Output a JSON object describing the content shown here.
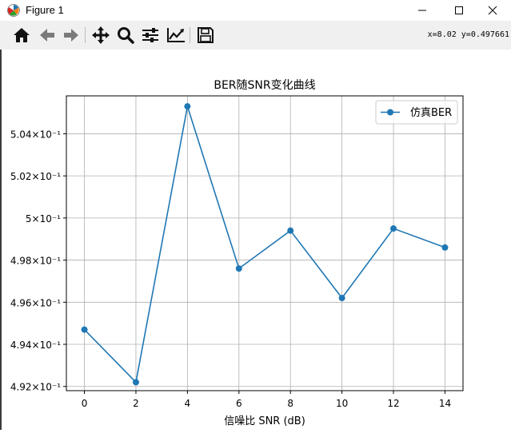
{
  "window": {
    "title": "Figure 1",
    "minimize_label": "Minimize",
    "maximize_label": "Maximize",
    "close_label": "Close"
  },
  "toolbar": {
    "items": [
      "home-icon",
      "back-icon",
      "forward-icon",
      "pan-icon",
      "zoom-icon",
      "subplots-icon",
      "edit-curves-icon",
      "save-icon"
    ],
    "coords": "x=8.02 y=0.497661"
  },
  "chart_data": {
    "type": "line",
    "title": "BER随SNR变化曲线",
    "xlabel": "信噪比 SNR (dB)",
    "ylabel": "",
    "x": [
      0,
      2,
      4,
      6,
      8,
      10,
      12,
      14
    ],
    "series": [
      {
        "name": "仿真BER",
        "values": [
          0.4947,
          0.4922,
          0.5053,
          0.4976,
          0.4994,
          0.4962,
          0.4995,
          0.4986
        ],
        "color": "#1f77b4",
        "marker": "circle"
      }
    ],
    "xlim": [
      -0.7,
      14.7
    ],
    "ylim": [
      0.4918,
      0.5058
    ],
    "xticks": [
      0,
      2,
      4,
      6,
      8,
      10,
      12,
      14
    ],
    "xtick_labels": [
      "0",
      "2",
      "4",
      "6",
      "8",
      "10",
      "12",
      "14"
    ],
    "yticks": [
      0.492,
      0.494,
      0.496,
      0.498,
      0.5,
      0.502,
      0.504
    ],
    "ytick_labels": [
      "4.92×10⁻¹",
      "4.94×10⁻¹",
      "4.96×10⁻¹",
      "4.98×10⁻¹",
      "5×10⁻¹",
      "5.02×10⁻¹",
      "5.04×10⁻¹"
    ],
    "grid": true,
    "legend_position": "top-right"
  }
}
